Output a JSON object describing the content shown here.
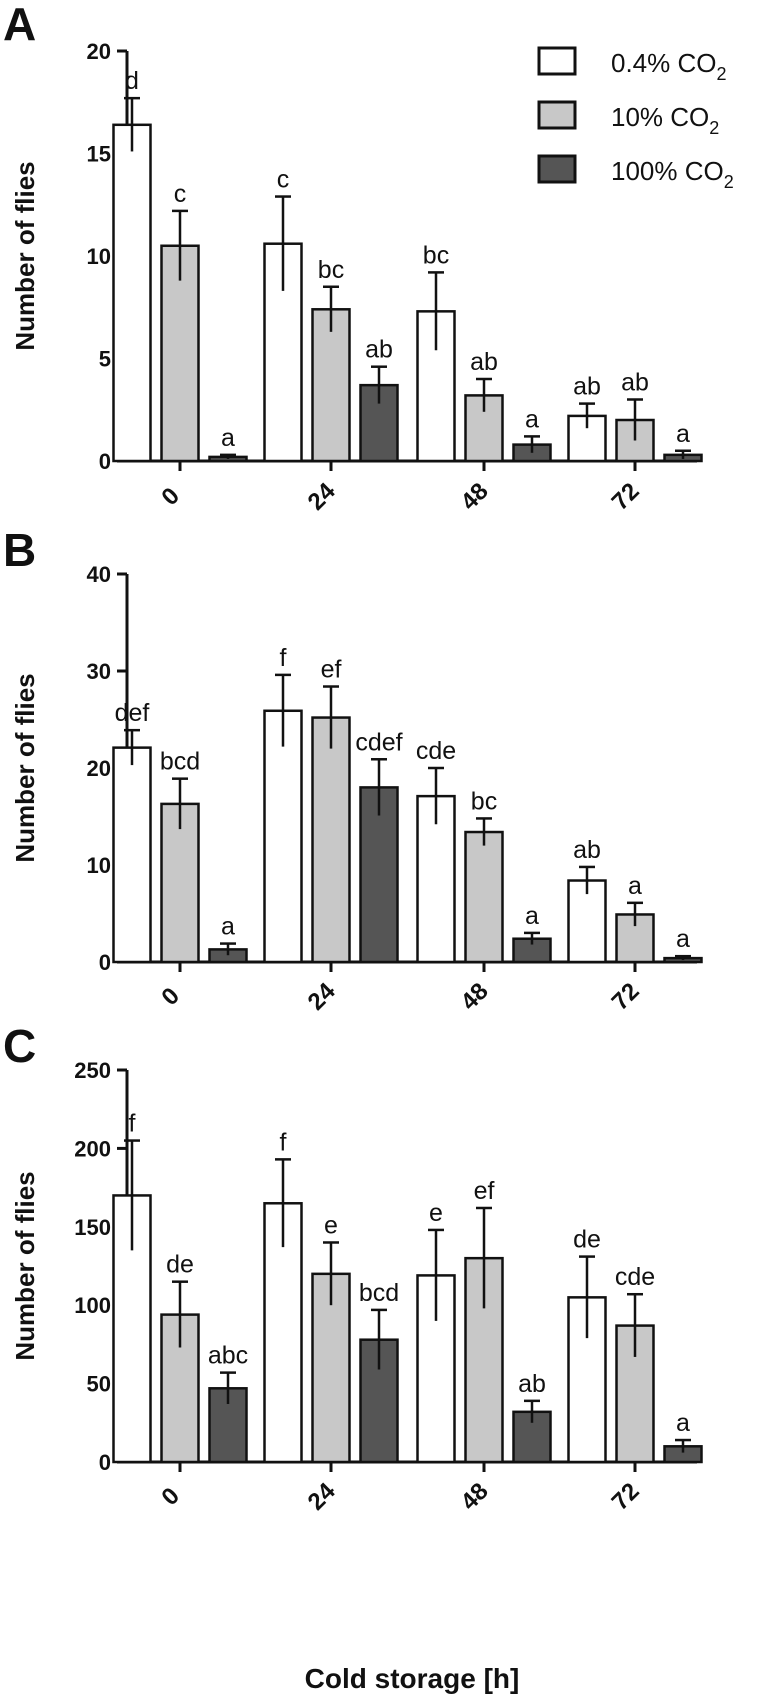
{
  "chart_data": [
    {
      "type": "bar",
      "panel": "A",
      "ylabel": "Number of flies",
      "ylim": [
        0,
        20
      ],
      "yticks": [
        "0",
        "5",
        "10",
        "15",
        "20"
      ],
      "categories": [
        "0",
        "24",
        "48",
        "72"
      ],
      "series": [
        {
          "name": "0.4% CO2",
          "values": [
            16.4,
            10.6,
            7.3,
            2.2
          ],
          "errors": [
            1.3,
            2.3,
            1.9,
            0.6
          ],
          "letters": [
            "d",
            "c",
            "bc",
            "ab"
          ]
        },
        {
          "name": "10% CO2",
          "values": [
            10.5,
            7.4,
            3.2,
            2.0
          ],
          "errors": [
            1.7,
            1.1,
            0.8,
            1.0
          ],
          "letters": [
            "c",
            "bc",
            "ab",
            "ab"
          ]
        },
        {
          "name": "100% CO2",
          "values": [
            0.2,
            3.7,
            0.8,
            0.3
          ],
          "errors": [
            0.1,
            0.9,
            0.4,
            0.2
          ],
          "letters": [
            "a",
            "ab",
            "a",
            "a"
          ]
        }
      ]
    },
    {
      "type": "bar",
      "panel": "B",
      "ylabel": "Number of flies",
      "ylim": [
        0,
        40
      ],
      "yticks": [
        "0",
        "10",
        "20",
        "30",
        "40"
      ],
      "categories": [
        "0",
        "24",
        "48",
        "72"
      ],
      "series": [
        {
          "name": "0.4% CO2",
          "values": [
            22.1,
            25.9,
            17.1,
            8.4
          ],
          "errors": [
            1.8,
            3.7,
            2.9,
            1.4
          ],
          "letters": [
            "def",
            "f",
            "cde",
            "ab"
          ]
        },
        {
          "name": "10% CO2",
          "values": [
            16.3,
            25.2,
            13.4,
            4.9
          ],
          "errors": [
            2.6,
            3.2,
            1.4,
            1.2
          ],
          "letters": [
            "bcd",
            "ef",
            "bc",
            "a"
          ]
        },
        {
          "name": "100% CO2",
          "values": [
            1.3,
            18.0,
            2.4,
            0.4
          ],
          "errors": [
            0.6,
            2.9,
            0.6,
            0.2
          ],
          "letters": [
            "a",
            "cdef",
            "a",
            "a"
          ]
        }
      ]
    },
    {
      "type": "bar",
      "panel": "C",
      "ylabel": "Number of flies",
      "xlabel": "Cold storage [h]",
      "ylim": [
        0,
        250
      ],
      "yticks": [
        "0",
        "50",
        "100",
        "150",
        "200",
        "250"
      ],
      "categories": [
        "0",
        "24",
        "48",
        "72"
      ],
      "series": [
        {
          "name": "0.4% CO2",
          "values": [
            170,
            165,
            119,
            105
          ],
          "errors": [
            35,
            28,
            29,
            26
          ],
          "letters": [
            "f",
            "f",
            "e",
            "de"
          ]
        },
        {
          "name": "10% CO2",
          "values": [
            94,
            120,
            130,
            87
          ],
          "errors": [
            21,
            20,
            32,
            20
          ],
          "letters": [
            "de",
            "e",
            "ef",
            "cde"
          ]
        },
        {
          "name": "100% CO2",
          "values": [
            47,
            78,
            32,
            10
          ],
          "errors": [
            10,
            19,
            7,
            4
          ],
          "letters": [
            "abc",
            "bcd",
            "ab",
            "a"
          ]
        }
      ]
    }
  ],
  "legend": {
    "items": [
      {
        "label": "0.4% CO",
        "sub": "2"
      },
      {
        "label": "10% CO",
        "sub": "2"
      },
      {
        "label": "100% CO",
        "sub": "2"
      }
    ]
  },
  "colors": {
    "series": [
      "#ffffff",
      "#c8c8c8",
      "#555555"
    ],
    "stroke": "#111111"
  }
}
